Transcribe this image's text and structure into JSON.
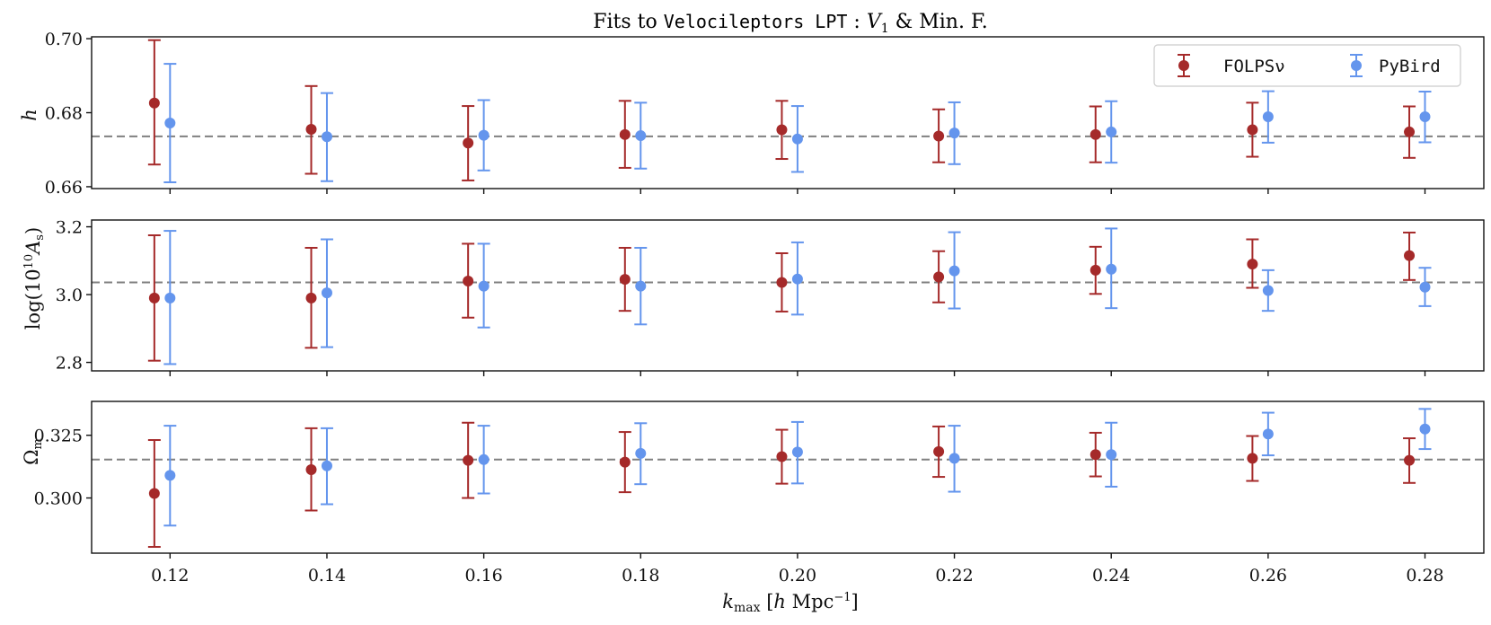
{
  "colors": {
    "folps": "#a52a2a",
    "pybird": "#6495ed",
    "reference": "#808080",
    "axes": "#111111"
  },
  "chart_data": {
    "type": "errorbar",
    "title": "Fits to Velocileptors LPT : V1 & Min. F.",
    "title_parts": {
      "prefix": "Fits to ",
      "code": "Velocileptors LPT",
      "sep": " : ",
      "v": "V",
      "v_sub": "1",
      "suffix": " & Min. F."
    },
    "xlabel": "k_max [h Mpc^-1]",
    "xlabel_parts": {
      "k": "k",
      "k_sub": "max",
      "open": " [",
      "h": "h",
      "unit": " Mpc",
      "exp": "−1",
      "close": "]"
    },
    "xlim": [
      0.11,
      0.2875
    ],
    "x_ticks": [
      "0.12",
      "0.14",
      "0.16",
      "0.18",
      "0.20",
      "0.22",
      "0.24",
      "0.26",
      "0.28"
    ],
    "x_tick_values": [
      0.12,
      0.14,
      0.16,
      0.18,
      0.2,
      0.22,
      0.24,
      0.26,
      0.28
    ],
    "x_offsets": {
      "FOLPSν": -0.002,
      "PyBird": 0.0
    },
    "legend": {
      "location": "top-right",
      "entries": [
        "FOLPSν",
        "PyBird"
      ]
    },
    "panels": [
      {
        "ylabel": "h",
        "ylabel_parts": {
          "main": "h"
        },
        "ylim": [
          0.6595,
          0.7005
        ],
        "y_ticks": [
          "0.66",
          "0.68",
          "0.70"
        ],
        "y_tick_values": [
          0.66,
          0.68,
          0.7
        ],
        "reference": 0.6736,
        "series": [
          {
            "name": "FOLPSν",
            "values": [
              0.6826,
              0.6755,
              0.6718,
              0.6741,
              0.6754,
              0.6737,
              0.6741,
              0.6754,
              0.6748
            ],
            "err_low": [
              0.0166,
              0.012,
              0.0101,
              0.009,
              0.0079,
              0.0071,
              0.0075,
              0.0073,
              0.007
            ],
            "err_high": [
              0.017,
              0.0117,
              0.01,
              0.0091,
              0.0078,
              0.0072,
              0.0076,
              0.0073,
              0.0069
            ]
          },
          {
            "name": "PyBird",
            "values": [
              0.6772,
              0.6735,
              0.6739,
              0.6738,
              0.6729,
              0.6745,
              0.6748,
              0.6789,
              0.6789
            ],
            "err_low": [
              0.016,
              0.012,
              0.0095,
              0.0089,
              0.0089,
              0.0084,
              0.0083,
              0.007,
              0.0069
            ],
            "err_high": [
              0.016,
              0.0118,
              0.0095,
              0.0089,
              0.0089,
              0.0083,
              0.0083,
              0.0069,
              0.0068
            ]
          }
        ]
      },
      {
        "ylabel": "log(10^10 A_s)",
        "ylabel_parts": {
          "pre": "log(10",
          "exp": "10",
          "a": "A",
          "sub": "s",
          "close": ")"
        },
        "ylim": [
          2.775,
          3.22
        ],
        "y_ticks": [
          "2.8",
          "3.0",
          "3.2"
        ],
        "y_tick_values": [
          2.8,
          3.0,
          3.2
        ],
        "reference": 3.036,
        "series": [
          {
            "name": "FOLPSν",
            "values": [
              2.99,
              2.99,
              3.04,
              3.045,
              3.036,
              3.052,
              3.072,
              3.09,
              3.115
            ],
            "err_low": [
              0.185,
              0.147,
              0.108,
              0.093,
              0.086,
              0.075,
              0.07,
              0.07,
              0.072
            ],
            "err_high": [
              0.185,
              0.148,
              0.11,
              0.093,
              0.086,
              0.076,
              0.069,
              0.073,
              0.068
            ]
          },
          {
            "name": "PyBird",
            "values": [
              2.99,
              3.005,
              3.025,
              3.025,
              3.046,
              3.07,
              3.075,
              3.012,
              3.022
            ],
            "err_low": [
              0.195,
              0.16,
              0.122,
              0.113,
              0.105,
              0.111,
              0.115,
              0.06,
              0.056
            ],
            "err_high": [
              0.198,
              0.158,
              0.125,
              0.113,
              0.108,
              0.114,
              0.12,
              0.06,
              0.057
            ]
          }
        ]
      },
      {
        "ylabel": "Ω_m",
        "ylabel_parts": {
          "main": "Ω",
          "sub": "m"
        },
        "ylim": [
          0.278,
          0.3385
        ],
        "y_ticks": [
          "0.300",
          "0.325"
        ],
        "y_tick_values": [
          0.3,
          0.325
        ],
        "reference": 0.3153,
        "series": [
          {
            "name": "FOLPSν",
            "values": [
              0.3018,
              0.3113,
              0.315,
              0.3143,
              0.3165,
              0.3185,
              0.3173,
              0.3158,
              0.315
            ],
            "err_low": [
              0.0213,
              0.0163,
              0.015,
              0.012,
              0.0108,
              0.0101,
              0.0087,
              0.009,
              0.009
            ],
            "err_high": [
              0.0213,
              0.0165,
              0.015,
              0.012,
              0.0107,
              0.01,
              0.0087,
              0.0089,
              0.0088
            ]
          },
          {
            "name": "PyBird",
            "values": [
              0.309,
              0.3128,
              0.3153,
              0.3178,
              0.3183,
              0.3158,
              0.3173,
              0.3255,
              0.3275
            ],
            "err_low": [
              0.02,
              0.0153,
              0.0135,
              0.0123,
              0.0125,
              0.0133,
              0.0128,
              0.0085,
              0.008
            ],
            "err_high": [
              0.0198,
              0.015,
              0.0135,
              0.012,
              0.012,
              0.013,
              0.0127,
              0.0085,
              0.008
            ]
          }
        ]
      }
    ]
  }
}
